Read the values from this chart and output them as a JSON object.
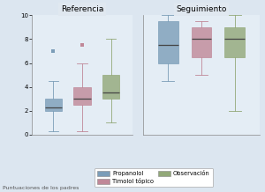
{
  "title_left": "Referencia",
  "title_right": "Seguimiento",
  "xlabel": "Puntuaciones de los padres",
  "ylim": [
    0,
    10
  ],
  "yticks": [
    0,
    2,
    4,
    6,
    8,
    10
  ],
  "background_color": "#dce6f0",
  "plot_bg": "#e4edf5",
  "colors": {
    "propranolol": "#7b9db8",
    "timolol": "#c08898",
    "observacion": "#92a878"
  },
  "legend": {
    "propranolol": "Propanolol",
    "timolol": "Timolol tópico",
    "observacion": "Observación"
  },
  "referencia": {
    "propranolol": {
      "q1": 2.0,
      "median": 2.3,
      "q3": 3.0,
      "whislo": 0.3,
      "whishi": 4.5,
      "fliers": [
        7.0
      ]
    },
    "timolol": {
      "q1": 2.5,
      "median": 3.0,
      "q3": 4.0,
      "whislo": 0.3,
      "whishi": 6.0,
      "fliers": [
        7.5
      ]
    },
    "observacion": {
      "q1": 3.0,
      "median": 3.5,
      "q3": 5.0,
      "whislo": 1.0,
      "whishi": 8.0,
      "fliers": []
    }
  },
  "seguimiento": {
    "propranolol": {
      "q1": 6.0,
      "median": 7.5,
      "q3": 9.5,
      "whislo": 4.5,
      "whishi": 10.0,
      "fliers": []
    },
    "timolol": {
      "q1": 6.5,
      "median": 8.0,
      "q3": 9.0,
      "whislo": 5.0,
      "whishi": 9.5,
      "fliers": []
    },
    "observacion": {
      "q1": 6.5,
      "median": 8.0,
      "q3": 9.0,
      "whislo": 2.0,
      "whishi": 10.0,
      "fliers": []
    }
  }
}
